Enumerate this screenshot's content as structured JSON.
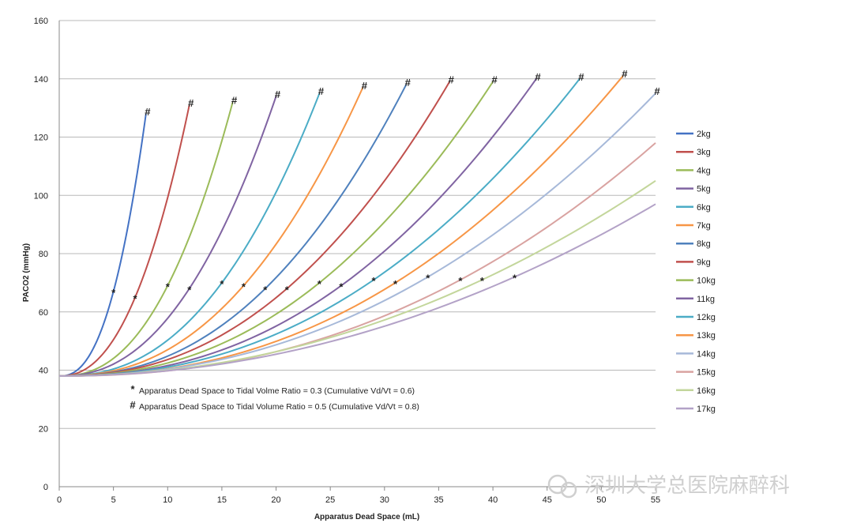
{
  "chart_data": {
    "type": "line",
    "title": "",
    "xlabel": "Apparatus Dead Space (mL)",
    "ylabel": "PACO2 (mmHg)",
    "xlim": [
      0,
      55
    ],
    "ylim": [
      0,
      160
    ],
    "x_ticks": [
      0,
      5,
      10,
      15,
      20,
      25,
      30,
      35,
      40,
      45,
      50,
      55
    ],
    "y_ticks": [
      0,
      20,
      40,
      60,
      80,
      100,
      120,
      140,
      160
    ],
    "grid": "horizontal",
    "legend_position": "right",
    "series": [
      {
        "name": "2kg",
        "color": "#4472C4",
        "star": [
          5,
          67
        ],
        "hash": [
          8,
          128
        ]
      },
      {
        "name": "3kg",
        "color": "#C0504D",
        "star": [
          7,
          65
        ],
        "hash": [
          12,
          131
        ]
      },
      {
        "name": "4kg",
        "color": "#9BBB59",
        "star": [
          10,
          69
        ],
        "hash": [
          16,
          132
        ]
      },
      {
        "name": "5kg",
        "color": "#8064A2",
        "star": [
          12,
          68
        ],
        "hash": [
          20,
          134
        ]
      },
      {
        "name": "6kg",
        "color": "#4BACC6",
        "star": [
          15,
          70
        ],
        "hash": [
          24,
          135
        ]
      },
      {
        "name": "7kg",
        "color": "#F79646",
        "star": [
          17,
          69
        ],
        "hash": [
          28,
          137
        ]
      },
      {
        "name": "8kg",
        "color": "#4F81BD",
        "star": [
          19,
          68
        ],
        "hash": [
          32,
          138
        ]
      },
      {
        "name": "9kg",
        "color": "#C0504D",
        "star": [
          21,
          68
        ],
        "hash": [
          36,
          139
        ]
      },
      {
        "name": "10kg",
        "color": "#9BBB59",
        "star": [
          24,
          70
        ],
        "hash": [
          40,
          139
        ]
      },
      {
        "name": "11kg",
        "color": "#8064A2",
        "star": [
          26,
          69
        ],
        "hash": [
          44,
          140
        ]
      },
      {
        "name": "12kg",
        "color": "#4BACC6",
        "star": [
          29,
          71
        ],
        "hash": [
          48,
          140
        ]
      },
      {
        "name": "13kg",
        "color": "#F79646",
        "star": [
          31,
          70
        ],
        "hash": [
          52,
          141
        ]
      },
      {
        "name": "14kg",
        "color": "#A7B9D9",
        "star": [
          34,
          72
        ],
        "hash": [
          55,
          135
        ]
      },
      {
        "name": "15kg",
        "color": "#D9A3A1",
        "star": [
          37,
          71
        ],
        "end": [
          55,
          118
        ]
      },
      {
        "name": "16kg",
        "color": "#C3D69B",
        "star": [
          39,
          71
        ],
        "end": [
          55,
          105
        ]
      },
      {
        "name": "17kg",
        "color": "#B3A2C7",
        "star": [
          42,
          72
        ],
        "end": [
          55,
          97
        ]
      }
    ],
    "start_point": [
      0,
      38
    ],
    "annotations": [
      {
        "symbol": "*",
        "text": "Apparatus Dead Space to Tidal Volme Ratio = 0.3 (Cumulative  Vd/Vt = 0.6)"
      },
      {
        "symbol": "#",
        "text": "Apparatus Dead Space to Tidal Volume Ratio = 0.5 (Cumulative  Vd/Vt = 0.8)"
      }
    ]
  },
  "watermark": {
    "text": "深圳大学总医院麻醉科"
  }
}
